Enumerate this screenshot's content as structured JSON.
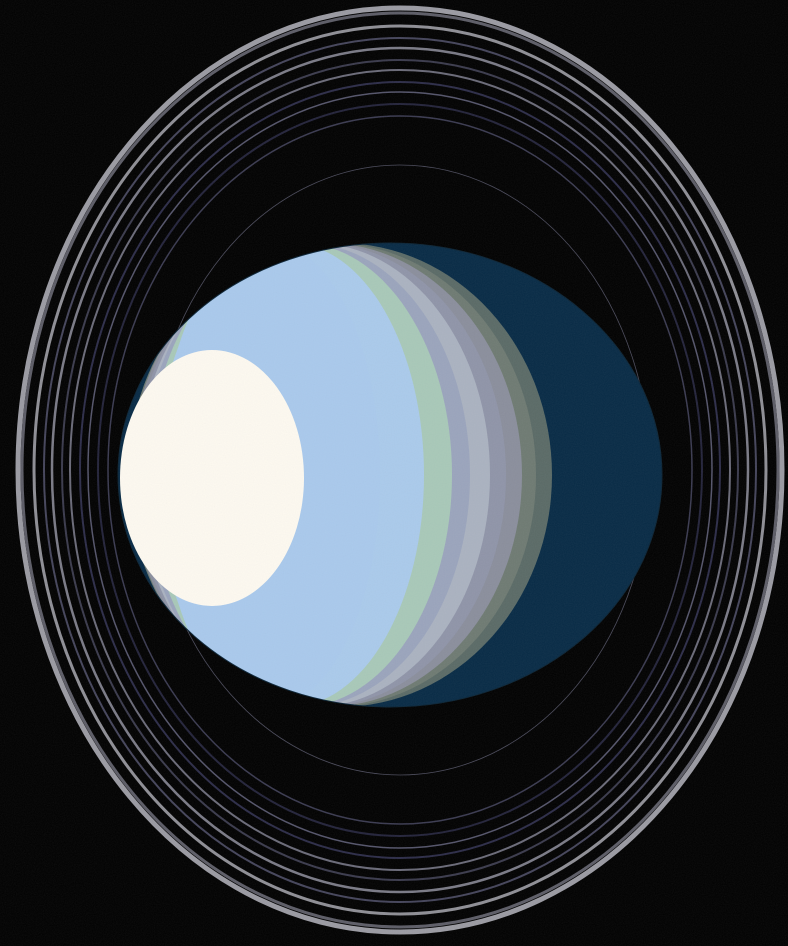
{
  "scene": {
    "subject": "ringed-planet",
    "background_color": "#000000",
    "ring_colors": [
      "#8e8e95",
      "#5a5a66",
      "#3a3a48",
      "#23233a",
      "#4a4a5a",
      "#9a9aa2"
    ],
    "planet_band_colors": [
      "#fdf9f0",
      "#aacaeb",
      "#a8c8b8",
      "#aab2c0",
      "#8f94a8",
      "#8a8e9c",
      "#6e7a72"
    ],
    "shadow_color": "#072a45"
  }
}
